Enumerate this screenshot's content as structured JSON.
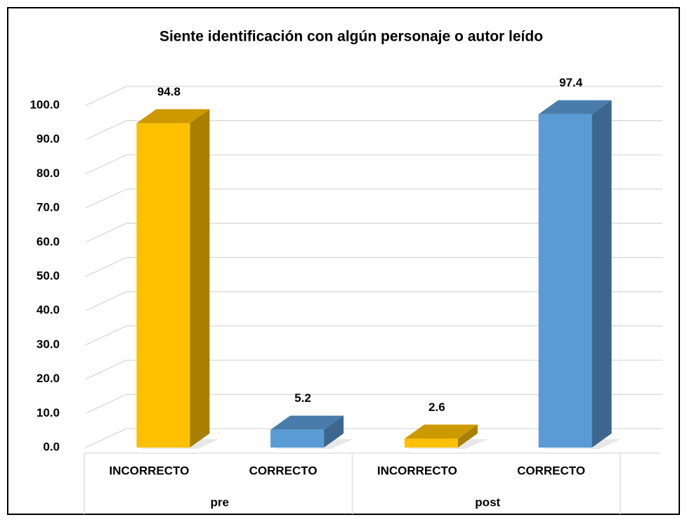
{
  "chart_data": {
    "type": "bar3d",
    "title": "Siente identificación  con algún personaje o autor leído",
    "categories": [
      "INCORRECTO",
      "CORRECTO",
      "INCORRECTO",
      "CORRECTO"
    ],
    "groups": [
      "pre",
      "post"
    ],
    "values": [
      94.8,
      5.2,
      2.6,
      97.4
    ],
    "colors": [
      "#FFC000",
      "#5B9BD5",
      "#FFC000",
      "#5B9BD5"
    ],
    "ylim": [
      0,
      100
    ],
    "yticks": [
      {
        "value": 0,
        "label": "0.0"
      },
      {
        "value": 10,
        "label": "10.0"
      },
      {
        "value": 20,
        "label": "20.0"
      },
      {
        "value": 30,
        "label": "30.0"
      },
      {
        "value": 40,
        "label": "40.0"
      },
      {
        "value": 50,
        "label": "50.0"
      },
      {
        "value": 60,
        "label": "60.0"
      },
      {
        "value": 70,
        "label": "70.0"
      },
      {
        "value": 80,
        "label": "80.0"
      },
      {
        "value": 90,
        "label": "90.0"
      },
      {
        "value": 100,
        "label": "100.0"
      }
    ],
    "grid": true
  }
}
